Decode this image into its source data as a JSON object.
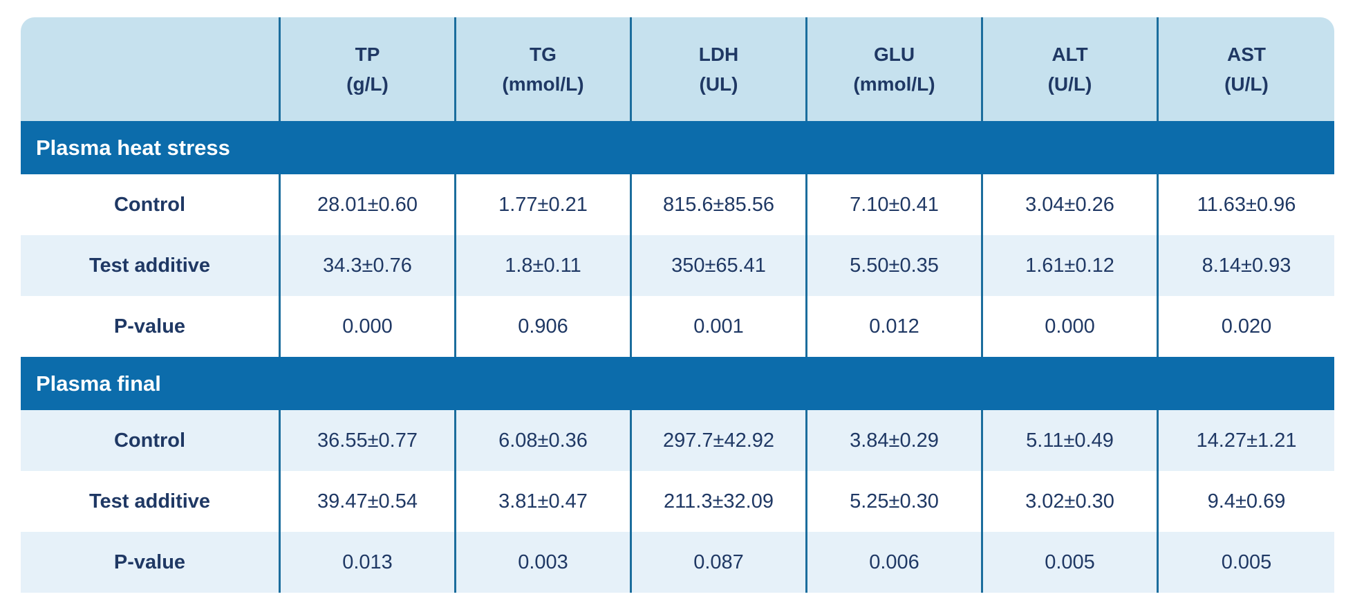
{
  "colors": {
    "section_band": "#0c6cab",
    "header_background": "#c6e1ee",
    "stripe_row": "#e6f1f9",
    "text_navy": "#1f3864",
    "column_separator": "#1b6d9d"
  },
  "table": {
    "columns": [
      {
        "abbr": "TP",
        "unit": "(g/L)"
      },
      {
        "abbr": "TG",
        "unit": "(mmol/L)"
      },
      {
        "abbr": "LDH",
        "unit": "(UL)"
      },
      {
        "abbr": "GLU",
        "unit": "(mmol/L)"
      },
      {
        "abbr": "ALT",
        "unit": "(U/L)"
      },
      {
        "abbr": "AST",
        "unit": "(U/L)"
      }
    ],
    "sections": [
      {
        "title": "Plasma heat stress",
        "rows": [
          {
            "label": "Control",
            "values": [
              "28.01±0.60",
              "1.77±0.21",
              "815.6±85.56",
              "7.10±0.41",
              "3.04±0.26",
              "11.63±0.96"
            ]
          },
          {
            "label": "Test additive",
            "values": [
              "34.3±0.76",
              "1.8±0.11",
              "350±65.41",
              "5.50±0.35",
              "1.61±0.12",
              "8.14±0.93"
            ]
          },
          {
            "label": "P-value",
            "values": [
              "0.000",
              "0.906",
              "0.001",
              "0.012",
              "0.000",
              "0.020"
            ]
          }
        ]
      },
      {
        "title": "Plasma final",
        "rows": [
          {
            "label": "Control",
            "values": [
              "36.55±0.77",
              "6.08±0.36",
              "297.7±42.92",
              "3.84±0.29",
              "5.11±0.49",
              "14.27±1.21"
            ]
          },
          {
            "label": "Test additive",
            "values": [
              "39.47±0.54",
              "3.81±0.47",
              "211.3±32.09",
              "5.25±0.30",
              "3.02±0.30",
              "9.4±0.69"
            ]
          },
          {
            "label": "P-value",
            "values": [
              "0.013",
              "0.003",
              "0.087",
              "0.006",
              "0.005",
              "0.005"
            ]
          }
        ]
      }
    ]
  },
  "chart_data": {
    "type": "table",
    "title": "",
    "column_headers": [
      "",
      "TP (g/L)",
      "TG (mmol/L)",
      "LDH (UL)",
      "GLU (mmol/L)",
      "ALT (U/L)",
      "AST (U/L)"
    ],
    "sections": [
      {
        "section_label": "Plasma heat stress",
        "rows": [
          [
            "Control",
            "28.01±0.60",
            "1.77±0.21",
            "815.6±85.56",
            "7.10±0.41",
            "3.04±0.26",
            "11.63±0.96"
          ],
          [
            "Test additive",
            "34.3±0.76",
            "1.8±0.11",
            "350±65.41",
            "5.50±0.35",
            "1.61±0.12",
            "8.14±0.93"
          ],
          [
            "P-value",
            "0.000",
            "0.906",
            "0.001",
            "0.012",
            "0.000",
            "0.020"
          ]
        ]
      },
      {
        "section_label": "Plasma final",
        "rows": [
          [
            "Control",
            "36.55±0.77",
            "6.08±0.36",
            "297.7±42.92",
            "3.84±0.29",
            "5.11±0.49",
            "14.27±1.21"
          ],
          [
            "Test additive",
            "39.47±0.54",
            "3.81±0.47",
            "211.3±32.09",
            "5.25±0.30",
            "3.02±0.30",
            "9.4±0.69"
          ],
          [
            "P-value",
            "0.013",
            "0.003",
            "0.087",
            "0.006",
            "0.005",
            "0.005"
          ]
        ]
      }
    ]
  }
}
